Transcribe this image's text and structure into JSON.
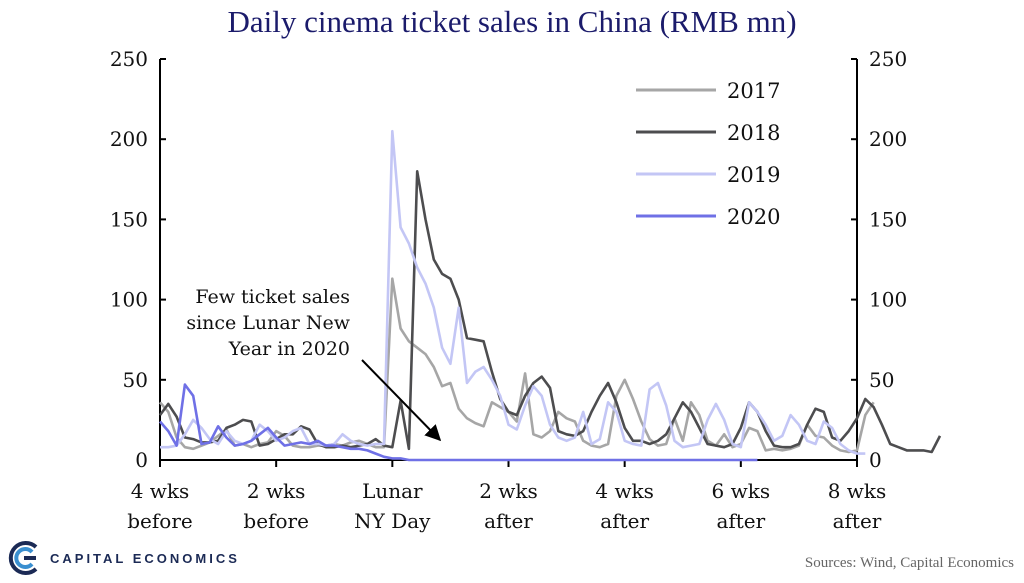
{
  "title": "Daily cinema ticket sales in China (RMB mn)",
  "annotation": [
    "Few ticket sales",
    "since Lunar New",
    "Year in 2020"
  ],
  "logo_text": "CAPITAL ECONOMICS",
  "source": "Sources: Wind, Capital Economics",
  "chart_data": {
    "type": "line",
    "title": "Daily cinema ticket sales in China (RMB mn)",
    "xlabel": "",
    "ylabel": "",
    "ylim": [
      0,
      250
    ],
    "xlim": [
      -28,
      56
    ],
    "y_ticks": [
      "0",
      "50",
      "100",
      "150",
      "200",
      "250"
    ],
    "y_tick_values": [
      0,
      50,
      100,
      150,
      200,
      250
    ],
    "x_ticks": [
      {
        "x": -28,
        "label": [
          "4 wks",
          "before"
        ]
      },
      {
        "x": -14,
        "label": [
          "2 wks",
          "before"
        ]
      },
      {
        "x": 0,
        "label": [
          "Lunar",
          "NY Day"
        ]
      },
      {
        "x": 14,
        "label": [
          "2 wks",
          "after"
        ]
      },
      {
        "x": 28,
        "label": [
          "4 wks",
          "after"
        ]
      },
      {
        "x": 42,
        "label": [
          "6 wks",
          "after"
        ]
      },
      {
        "x": 56,
        "label": [
          "8 wks",
          "after"
        ]
      }
    ],
    "legend_position": "top-right",
    "series": [
      {
        "name": "2017",
        "color": "#a6a6a6",
        "start": -28,
        "values": [
          36,
          30,
          14,
          8,
          7,
          9,
          11,
          15,
          19,
          9,
          10,
          8,
          10,
          11,
          18,
          15,
          9,
          8,
          8,
          9,
          9,
          10,
          9,
          11,
          12,
          10,
          8,
          8,
          113,
          82,
          74,
          70,
          66,
          58,
          46,
          48,
          32,
          26,
          23,
          21,
          36,
          33,
          30,
          24,
          54,
          16,
          14,
          18,
          30,
          26,
          24,
          12,
          9,
          8,
          10,
          40,
          50,
          38,
          24,
          13,
          9,
          10,
          26,
          12,
          36,
          28,
          12,
          9,
          16,
          8,
          10,
          20,
          18,
          6,
          7,
          6,
          7,
          9,
          22,
          15,
          14,
          9,
          6,
          5,
          6,
          28,
          36
        ]
      },
      {
        "name": "2018",
        "color": "#4d4d4f",
        "start": -28,
        "values": [
          28,
          35,
          27,
          14,
          13,
          11,
          11,
          12,
          20,
          22,
          25,
          24,
          9,
          10,
          13,
          16,
          16,
          21,
          19,
          10,
          8,
          8,
          9,
          8,
          9,
          10,
          13,
          9,
          8,
          37,
          7,
          180,
          150,
          125,
          116,
          113,
          100,
          76,
          75,
          74,
          55,
          38,
          30,
          28,
          40,
          48,
          52,
          45,
          18,
          16,
          15,
          18,
          30,
          40,
          48,
          36,
          20,
          12,
          12,
          10,
          12,
          16,
          26,
          36,
          30,
          20,
          10,
          9,
          8,
          10,
          20,
          36,
          30,
          18,
          9,
          8,
          8,
          10,
          22,
          32,
          30,
          14,
          12,
          18,
          26,
          38,
          33,
          22,
          10,
          8,
          6,
          6,
          6,
          5,
          15
        ]
      },
      {
        "name": "2019",
        "color": "#c3c6f5",
        "start": -28,
        "values": [
          8,
          8,
          9,
          16,
          25,
          20,
          13,
          10,
          18,
          12,
          10,
          12,
          22,
          18,
          12,
          14,
          18,
          20,
          10,
          10,
          9,
          10,
          16,
          12,
          10,
          9,
          10,
          10,
          205,
          145,
          135,
          120,
          110,
          95,
          70,
          60,
          95,
          48,
          55,
          58,
          50,
          40,
          22,
          19,
          34,
          46,
          40,
          22,
          14,
          12,
          14,
          30,
          10,
          13,
          36,
          30,
          12,
          10,
          9,
          44,
          48,
          34,
          12,
          8,
          9,
          10,
          25,
          35,
          25,
          10,
          8,
          36,
          30,
          22,
          12,
          15,
          28,
          22,
          12,
          10,
          24,
          20,
          10,
          6,
          4,
          4
        ]
      },
      {
        "name": "2020",
        "color": "#6f70e6",
        "start": -28,
        "values": [
          24,
          18,
          9,
          47,
          40,
          10,
          11,
          21,
          14,
          9,
          10,
          12,
          16,
          20,
          14,
          9,
          10,
          11,
          10,
          12,
          9,
          9,
          8,
          7,
          7,
          6,
          4,
          2,
          1,
          1,
          0,
          0,
          0,
          0,
          0,
          0,
          0,
          0,
          0,
          0,
          0,
          0,
          0,
          0,
          0,
          0,
          0,
          0,
          0,
          0,
          0,
          0,
          0,
          0,
          0,
          0,
          0,
          0,
          0,
          0,
          0,
          0,
          0,
          0,
          0,
          0,
          0,
          0,
          0,
          0,
          0,
          0,
          0
        ]
      }
    ]
  }
}
